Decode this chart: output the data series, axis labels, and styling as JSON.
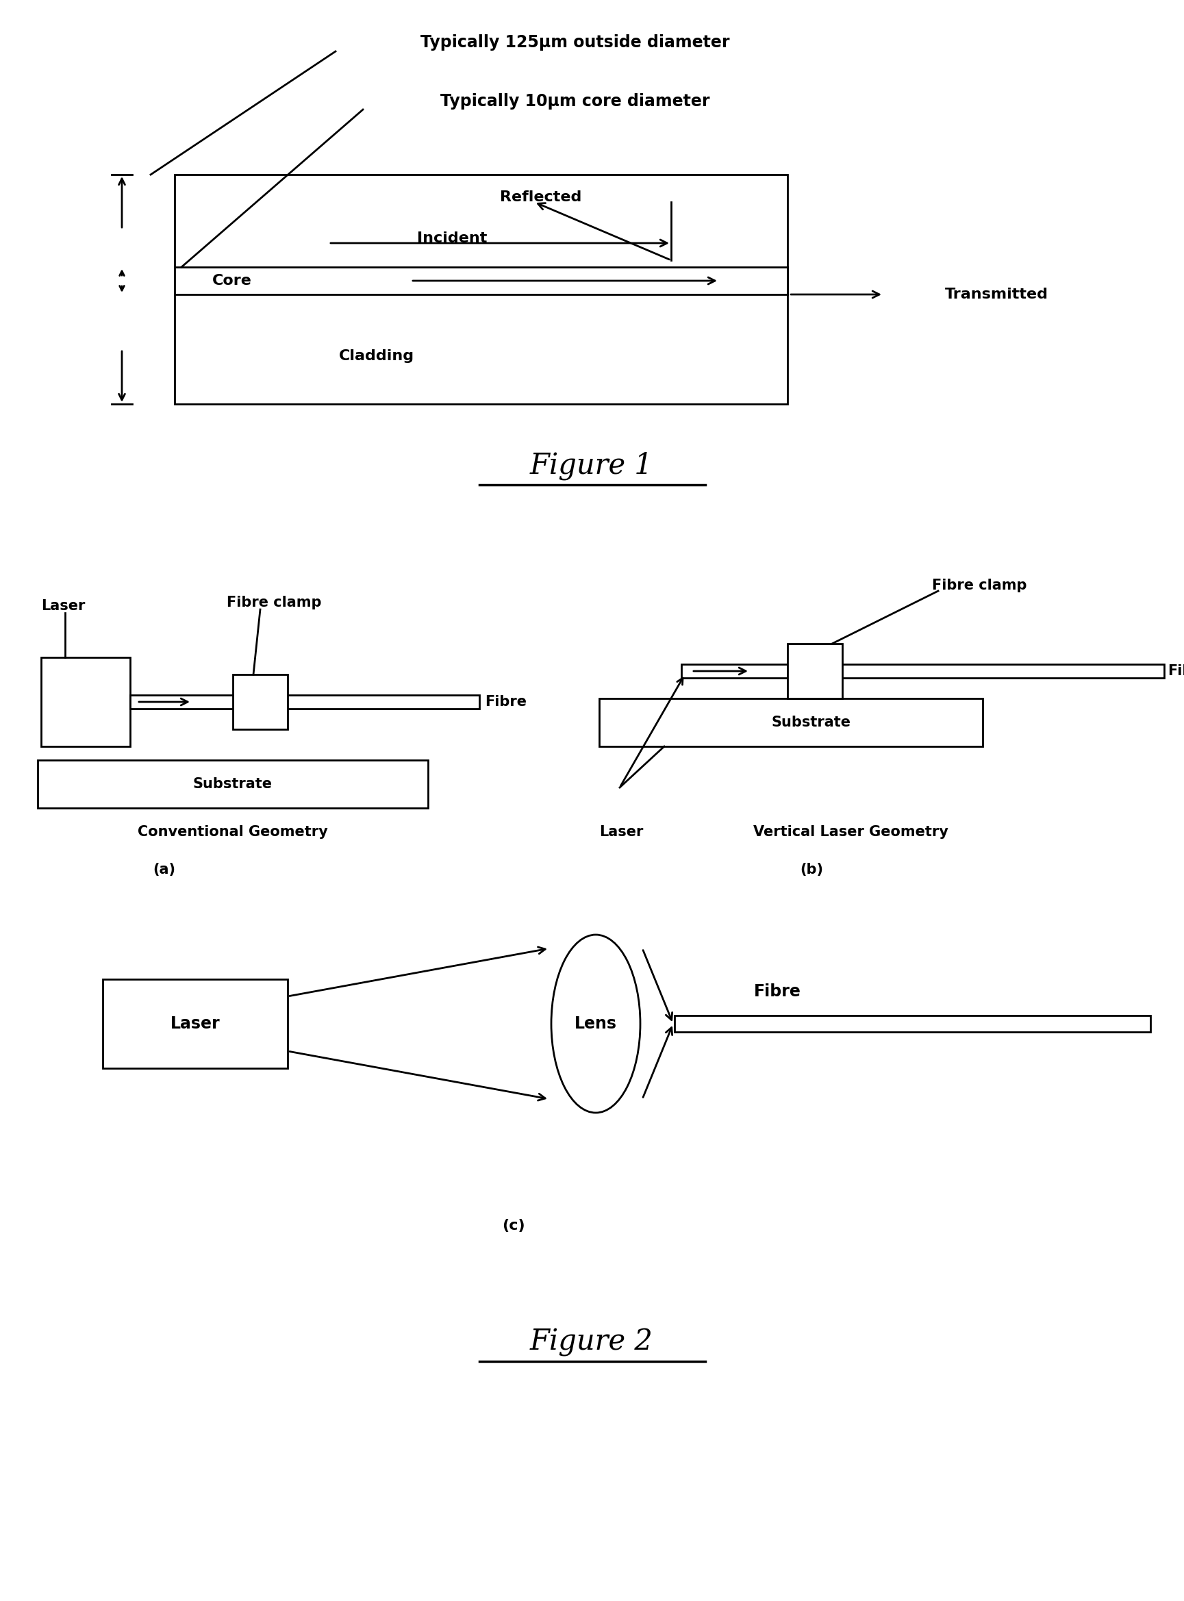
{
  "fig_width": 17.29,
  "fig_height": 23.38,
  "bg_color": "#ffffff",
  "line_color": "#000000",
  "lw": 2.0,
  "label_125um": "Typically 125μm outside diameter",
  "label_10um": "Typically 10μm core diameter",
  "label_reflected": "Reflected",
  "label_incident": "Incident",
  "label_transmitted": "Transmitted",
  "label_core": "Core",
  "label_cladding": "Cladding",
  "fig1_title": "Figure 1",
  "label_laser_a": "Laser",
  "label_fibre_clamp_a": "Fibre clamp",
  "label_fibre_a": "Fibre",
  "label_substrate_a": "Substrate",
  "label_conv_geom": "Conventional Geometry",
  "label_a": "(a)",
  "label_laser_b": "Laser",
  "label_fibre_clamp_b": "Fibre clamp",
  "label_fibre_b": "Fibre",
  "label_substrate_b": "Substrate",
  "label_vert_laser_geom": "Vertical Laser Geometry",
  "label_b": "(b)",
  "label_laser_c": "Laser",
  "label_lens_c": "Lens",
  "label_fibre_c": "Fibre",
  "label_c": "(c)",
  "fig2_title": "Figure 2"
}
